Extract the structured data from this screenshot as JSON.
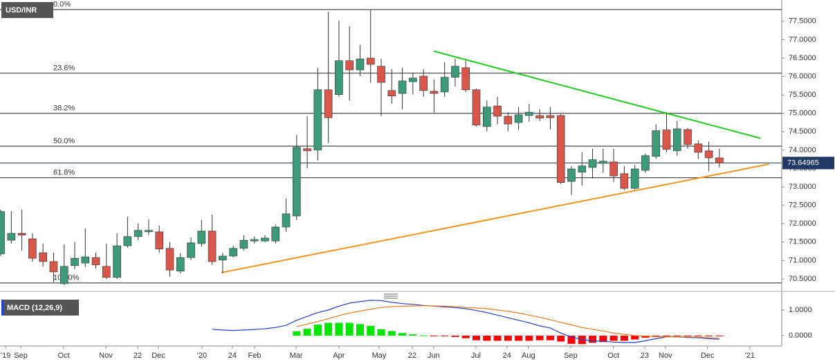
{
  "chart_data": [
    {
      "type": "candlestick",
      "title": "USD/INR",
      "categories": [
        null,
        null,
        null,
        null,
        null,
        null,
        null,
        null,
        null,
        null,
        null,
        null,
        null,
        null,
        null,
        null,
        null,
        null,
        null,
        null,
        null,
        null,
        null,
        null,
        null,
        null,
        null,
        null,
        null,
        null,
        null,
        null,
        null,
        null,
        null,
        null,
        null,
        null,
        null,
        null,
        null,
        null,
        null,
        null,
        null,
        null,
        null,
        null,
        null,
        null,
        null,
        null,
        null,
        null,
        null,
        null,
        null,
        null,
        null,
        null,
        null,
        null,
        null,
        null,
        null,
        null,
        null,
        null,
        null
      ],
      "open": [
        71.18,
        71.55,
        71.74,
        71.59,
        71.21,
        70.97,
        70.37,
        70.86,
        70.93,
        71.08,
        70.84,
        70.54,
        71.4,
        71.65,
        71.78,
        71.78,
        71.33,
        70.71,
        71.08,
        71.46,
        71.8,
        71.01,
        71.12,
        71.33,
        71.53,
        71.53,
        71.53,
        71.91,
        72.21,
        74.04,
        74.0,
        75.64,
        75.51,
        76.43,
        76.18,
        76.5,
        76.28,
        75.62,
        75.54,
        75.86,
        76.01,
        75.6,
        75.58,
        75.98,
        76.24,
        75.64,
        74.64,
        75.2,
        74.92,
        74.75,
        74.94,
        74.94,
        74.94,
        74.94,
        73.15,
        73.4,
        73.53,
        73.64,
        73.68,
        73.36,
        72.96,
        73.45,
        73.83,
        74.55,
        73.98,
        74.56,
        74.17,
        73.98,
        73.79
      ],
      "high": [
        72.38,
        72.34,
        72.38,
        71.74,
        71.46,
        71.21,
        71.44,
        71.5,
        71.87,
        71.21,
        71.46,
        71.74,
        72.19,
        72.01,
        72.12,
        71.95,
        71.5,
        71.2,
        71.63,
        72.1,
        72.25,
        71.21,
        71.4,
        71.69,
        71.65,
        71.69,
        71.97,
        72.68,
        74.41,
        74.92,
        76.24,
        77.76,
        77.52,
        77.37,
        76.86,
        77.82,
        76.48,
        76.2,
        76.24,
        76.11,
        76.2,
        75.92,
        76.39,
        76.48,
        76.43,
        75.67,
        75.35,
        75.45,
        75.03,
        75.17,
        75.26,
        75.11,
        75.17,
        74.98,
        73.57,
        73.94,
        74.04,
        74.04,
        74.04,
        73.57,
        73.6,
        73.91,
        74.7,
        75.03,
        74.79,
        74.6,
        74.26,
        74.23,
        74.04
      ],
      "low": [
        71.12,
        71.46,
        71.27,
        70.97,
        70.84,
        70.41,
        70.33,
        70.76,
        70.82,
        70.78,
        70.5,
        70.5,
        71.35,
        71.55,
        71.69,
        71.21,
        70.56,
        70.65,
        71.01,
        71.38,
        70.88,
        70.65,
        71.08,
        71.27,
        71.46,
        71.5,
        71.46,
        71.78,
        72.1,
        73.51,
        73.72,
        74.19,
        75.45,
        75.35,
        76.01,
        75.83,
        74.92,
        75.26,
        75.11,
        75.51,
        75.45,
        75.02,
        75.45,
        75.73,
        75.58,
        74.64,
        74.51,
        74.7,
        74.51,
        74.55,
        74.77,
        74.79,
        74.56,
        73.08,
        72.78,
        73.04,
        73.23,
        73.38,
        73.13,
        72.91,
        72.93,
        73.38,
        73.76,
        73.94,
        73.85,
        74.04,
        73.76,
        73.42,
        73.53
      ],
      "close": [
        72.33,
        71.74,
        71.69,
        71.06,
        70.97,
        70.69,
        70.84,
        71.06,
        71.1,
        70.88,
        70.54,
        71.4,
        71.65,
        71.82,
        71.82,
        71.31,
        70.74,
        71.08,
        71.48,
        71.8,
        70.97,
        71.12,
        71.33,
        71.55,
        71.57,
        71.61,
        71.91,
        72.27,
        74.08,
        73.98,
        75.64,
        74.88,
        76.43,
        76.18,
        76.48,
        76.33,
        75.84,
        75.47,
        75.88,
        75.96,
        75.62,
        75.54,
        75.98,
        76.28,
        75.64,
        74.68,
        75.17,
        74.92,
        74.71,
        74.96,
        75.03,
        74.87,
        74.88,
        73.12,
        73.49,
        73.57,
        73.74,
        73.7,
        73.3,
        72.96,
        73.49,
        73.85,
        74.53,
        74.02,
        74.58,
        74.15,
        73.94,
        73.79,
        73.64965
      ],
      "up_color": "#3c9a78",
      "down_color": "#d9574a",
      "last_price": 73.64965,
      "last_price_color": "#1f3864",
      "fib_levels": [
        {
          "label": "0.0%",
          "value": 77.82
        },
        {
          "label": "23.6%",
          "value": 76.09
        },
        {
          "label": "38.2%",
          "value": 75.0
        },
        {
          "label": "50.0%",
          "value": 74.11
        },
        {
          "label": "61.8%",
          "value": 73.25
        },
        {
          "label": "100.0%",
          "value": 70.39
        }
      ],
      "trendlines": [
        {
          "color": "#22cc22",
          "x": [
            40.97,
            71.9
          ],
          "y": [
            76.69,
            74.32
          ]
        },
        {
          "color": "#f5931e",
          "x": [
            20.88,
            72.7
          ],
          "y": [
            70.67,
            73.62
          ]
        }
      ],
      "xlim": [
        -0.07,
        73.9
      ],
      "ylim": [
        70.18,
        78.08
      ],
      "yticks": [
        {
          "value": 70.5,
          "label": "70.5000"
        },
        {
          "value": 71,
          "label": "71.0000"
        },
        {
          "value": 71.5,
          "label": "71.5000"
        },
        {
          "value": 72,
          "label": "72.0000"
        },
        {
          "value": 72.5,
          "label": "72.5000"
        },
        {
          "value": 73,
          "label": "73.0000"
        },
        {
          "value": 73.5,
          "label": "73.5000"
        },
        {
          "value": 74,
          "label": "74.0000"
        },
        {
          "value": 74.5,
          "label": "74.5000"
        },
        {
          "value": 75,
          "label": "75.0000"
        },
        {
          "value": 75.5,
          "label": "75.5000"
        },
        {
          "value": 76,
          "label": "76.0000"
        },
        {
          "value": 76.5,
          "label": "76.5000"
        },
        {
          "value": 77,
          "label": "77.0000"
        },
        {
          "value": 77.5,
          "label": "77.5000"
        }
      ]
    },
    {
      "type": "macd",
      "title": "MACD (12,26,9)",
      "histogram": {
        "up_color": "#00e600",
        "down_color": "#ff0000",
        "values": [
          null,
          null,
          null,
          null,
          null,
          null,
          null,
          null,
          null,
          null,
          null,
          null,
          null,
          null,
          null,
          null,
          null,
          null,
          null,
          null,
          null,
          null,
          null,
          null,
          null,
          null,
          null,
          null,
          0.17,
          0.27,
          0.43,
          0.5,
          0.5,
          0.5,
          0.45,
          0.38,
          0.25,
          0.18,
          0.1,
          0.05,
          0.01,
          -0.01,
          -0.02,
          -0.05,
          -0.1,
          -0.18,
          -0.2,
          -0.2,
          -0.2,
          -0.2,
          -0.2,
          -0.18,
          -0.18,
          -0.23,
          -0.32,
          -0.33,
          -0.28,
          -0.25,
          -0.2,
          -0.2,
          -0.15,
          -0.08,
          -0.05,
          -0.03,
          -0.01,
          -0.01,
          -0.01,
          -0.02,
          -0.02
        ]
      },
      "lines": [
        {
          "color": "#2040d0",
          "values": [
            null,
            null,
            null,
            null,
            null,
            null,
            null,
            null,
            null,
            null,
            null,
            null,
            null,
            null,
            null,
            null,
            null,
            null,
            null,
            null,
            0.25,
            0.22,
            0.2,
            0.22,
            0.24,
            0.27,
            0.32,
            0.4,
            0.6,
            0.75,
            0.9,
            1.0,
            1.15,
            1.27,
            1.33,
            1.38,
            1.37,
            1.3,
            1.25,
            1.22,
            1.18,
            1.15,
            1.12,
            1.1,
            1.05,
            0.98,
            0.9,
            0.8,
            0.7,
            0.6,
            0.5,
            0.38,
            0.3,
            0.1,
            -0.05,
            -0.15,
            -0.2,
            -0.22,
            -0.25,
            -0.27,
            -0.27,
            -0.2,
            -0.12,
            -0.05,
            -0.05,
            -0.07,
            -0.08,
            -0.12,
            -0.14
          ]
        },
        {
          "color": "#f07820",
          "values": [
            null,
            null,
            null,
            null,
            null,
            null,
            null,
            null,
            null,
            null,
            null,
            null,
            null,
            null,
            null,
            null,
            null,
            null,
            null,
            null,
            null,
            null,
            null,
            null,
            null,
            null,
            null,
            null,
            0.35,
            0.45,
            0.55,
            0.66,
            0.78,
            0.88,
            0.96,
            1.03,
            1.1,
            1.13,
            1.15,
            1.16,
            1.17,
            1.16,
            1.15,
            1.13,
            1.1,
            1.08,
            1.05,
            1.0,
            0.95,
            0.88,
            0.8,
            0.72,
            0.62,
            0.52,
            0.42,
            0.32,
            0.25,
            0.18,
            0.1,
            0.05,
            0.0,
            -0.02,
            -0.04,
            -0.05,
            -0.05,
            -0.05,
            -0.06,
            -0.08,
            -0.1
          ]
        }
      ],
      "xlim": [
        -0.07,
        73.9
      ],
      "ylim": [
        -0.405,
        1.54
      ],
      "yticks": [
        {
          "value": 0,
          "label": "0.0000"
        },
        {
          "value": 1,
          "label": "1.0000"
        }
      ],
      "xticks": [
        {
          "value": 0.46,
          "label": "'19"
        },
        {
          "value": 1.9,
          "label": "Sep"
        },
        {
          "value": 5.96,
          "label": "Oct"
        },
        {
          "value": 9.95,
          "label": "Nov"
        },
        {
          "value": 12.96,
          "label": "22"
        },
        {
          "value": 14.92,
          "label": "Dec"
        },
        {
          "value": 19.04,
          "label": "'20"
        },
        {
          "value": 21.92,
          "label": "24"
        },
        {
          "value": 24.02,
          "label": "Feb"
        },
        {
          "value": 27.95,
          "label": "Mar"
        },
        {
          "value": 32.0,
          "label": "Apr"
        },
        {
          "value": 35.8,
          "label": "May"
        },
        {
          "value": 38.94,
          "label": "22"
        },
        {
          "value": 40.97,
          "label": "Jun"
        },
        {
          "value": 44.96,
          "label": "Jul"
        },
        {
          "value": 47.9,
          "label": "24"
        },
        {
          "value": 49.93,
          "label": "Aug"
        },
        {
          "value": 53.93,
          "label": "Sep"
        },
        {
          "value": 57.98,
          "label": "Oct"
        },
        {
          "value": 60.93,
          "label": "23"
        },
        {
          "value": 62.89,
          "label": "Nov"
        },
        {
          "value": 66.88,
          "label": "Dec"
        },
        {
          "value": 70.88,
          "label": "'21"
        }
      ]
    }
  ]
}
